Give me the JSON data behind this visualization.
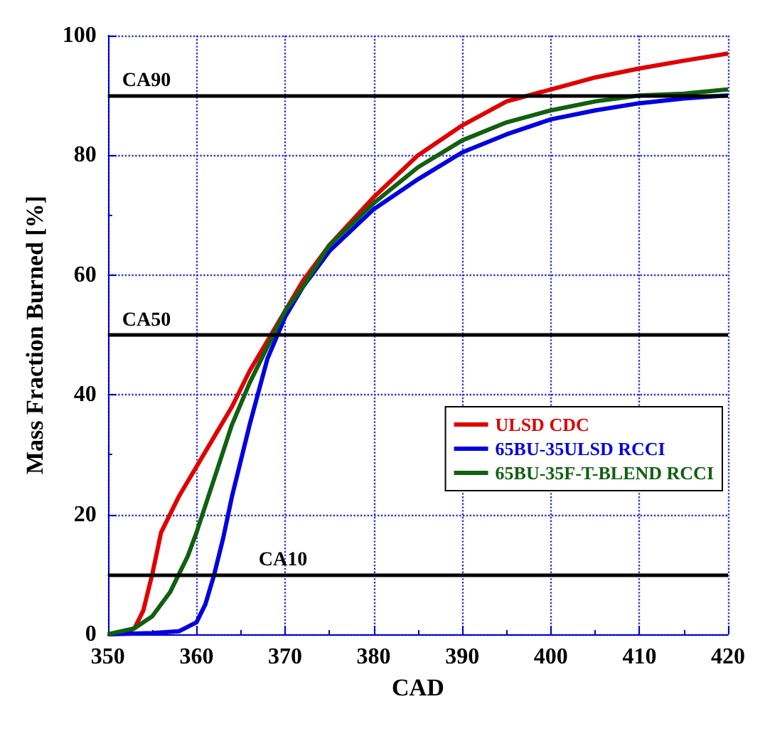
{
  "chart_data": {
    "type": "line",
    "xlabel": "CAD",
    "ylabel": "Mass Fraction Burned [%]",
    "xlim": [
      350,
      420
    ],
    "xticks": [
      350,
      360,
      370,
      380,
      390,
      400,
      410,
      420
    ],
    "ylim": [
      0,
      100
    ],
    "yticks": [
      0,
      20,
      40,
      60,
      80,
      100
    ],
    "grid": true,
    "legend": "right",
    "marker": "none",
    "line_style": "solid",
    "series": [
      {
        "name": "ULSD CDC",
        "color": "#e00000",
        "x": [
          350,
          352,
          353,
          354,
          355,
          356,
          357,
          358,
          360,
          362,
          364,
          366,
          368,
          370,
          372,
          375,
          380,
          385,
          390,
          395,
          400,
          405,
          410,
          415,
          420
        ],
        "values": [
          0,
          0.3,
          1,
          4,
          10,
          17,
          20,
          23,
          28,
          33,
          38,
          44,
          49,
          54,
          59,
          65,
          73,
          80,
          85,
          89,
          91,
          93,
          94.5,
          95.8,
          97
        ]
      },
      {
        "name": "65BU-35ULSD RCCI",
        "color": "#0000e0",
        "x": [
          350,
          355,
          358,
          360,
          361,
          362,
          363,
          364,
          366,
          368,
          370,
          372,
          375,
          380,
          385,
          390,
          395,
          400,
          405,
          410,
          415,
          420
        ],
        "values": [
          0,
          0.2,
          0.5,
          2,
          5,
          10,
          16,
          23,
          35,
          46,
          53,
          58,
          64,
          71,
          76,
          80.5,
          83.5,
          86,
          87.5,
          88.7,
          89.5,
          90
        ]
      },
      {
        "name": "65BU-35F-T-BLEND RCCI",
        "color": "#106010",
        "x": [
          350,
          353,
          355,
          357,
          359,
          360,
          362,
          364,
          366,
          368,
          370,
          372,
          375,
          380,
          385,
          390,
          395,
          400,
          405,
          410,
          415,
          420
        ],
        "values": [
          0,
          1,
          3,
          7,
          13,
          17,
          26,
          35,
          42,
          48,
          54,
          58,
          65,
          72,
          78,
          82.5,
          85.5,
          87.5,
          89,
          90,
          90.3,
          91
        ]
      }
    ],
    "ref_lines": [
      {
        "axis": "y",
        "value": 90,
        "label": "CA90",
        "color": "#000000"
      },
      {
        "axis": "y",
        "value": 50,
        "label": "CA50",
        "color": "#000000"
      },
      {
        "axis": "y",
        "value": 10,
        "label": "CA10",
        "color": "#000000"
      }
    ]
  }
}
